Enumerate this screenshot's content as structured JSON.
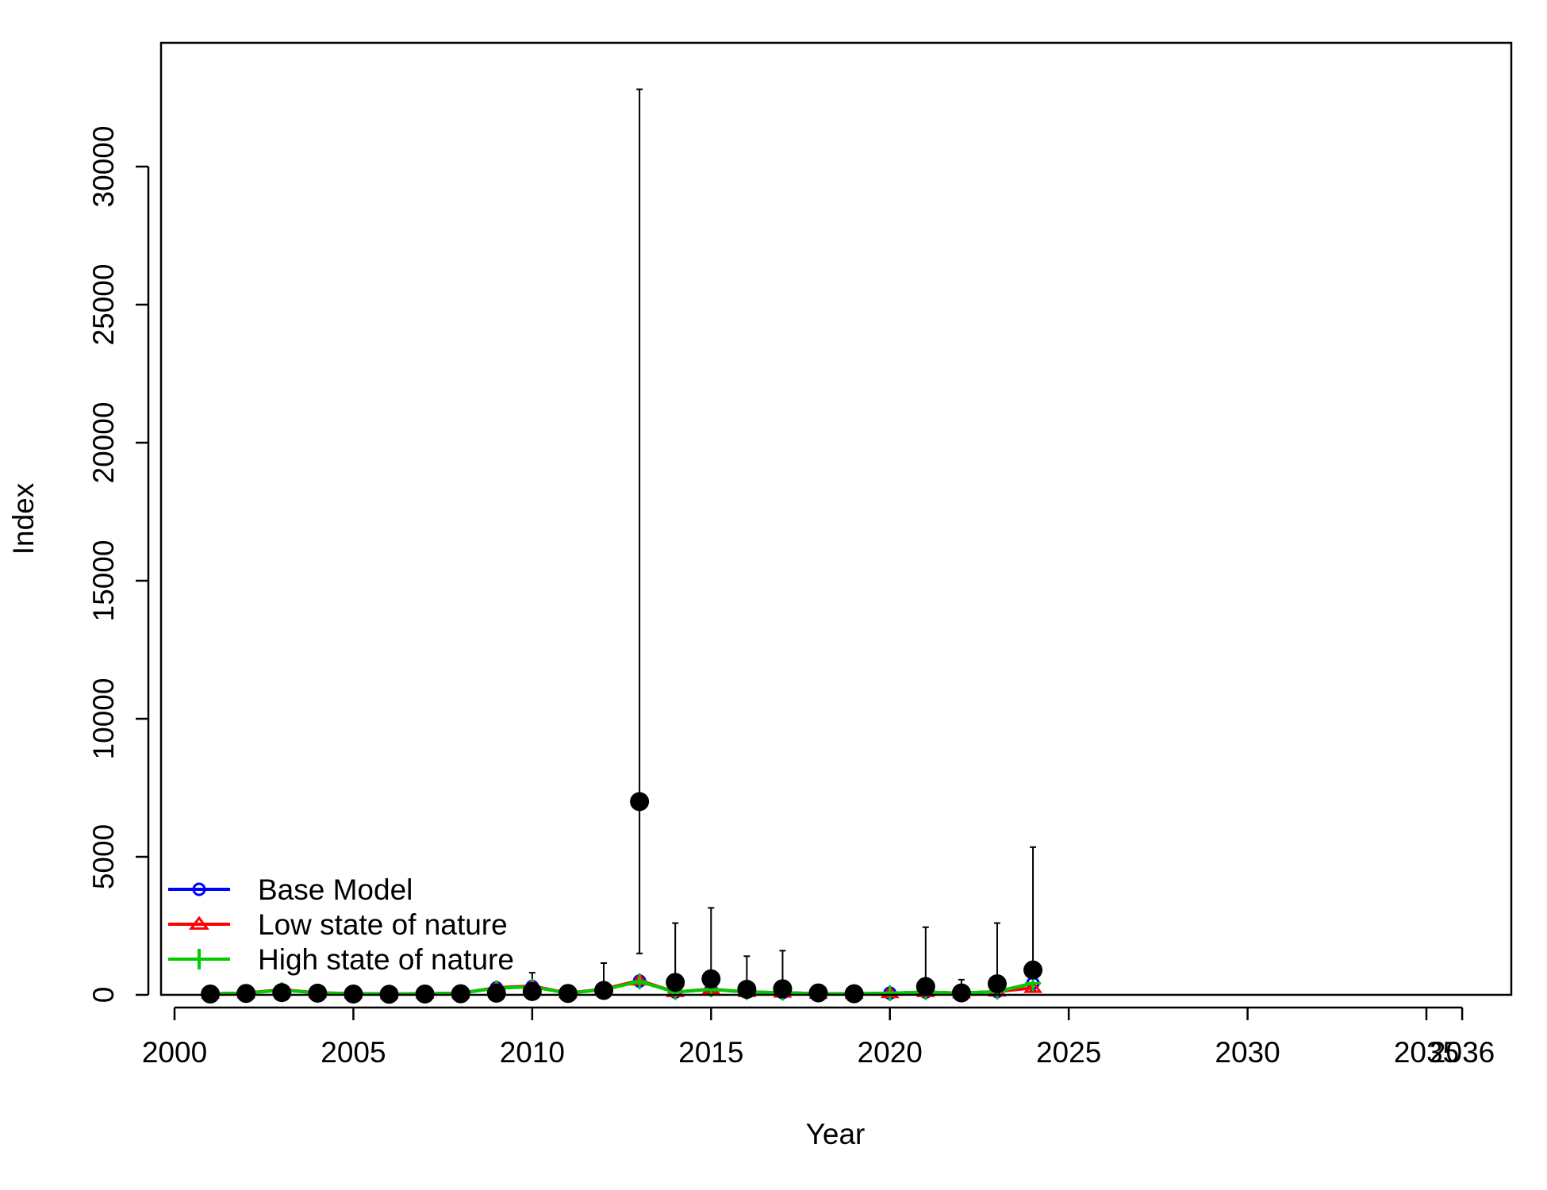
{
  "chart_data": {
    "type": "line",
    "title": "",
    "xlabel": "Year",
    "ylabel": "Index",
    "xlim": [
      2000,
      2036
    ],
    "ylim": [
      0,
      33000
    ],
    "xticks": [
      "2000",
      "2005",
      "2010",
      "2015",
      "2020",
      "2025",
      "2030",
      "2035",
      "2036"
    ],
    "yticks": [
      "0",
      "5000",
      "10000",
      "15000",
      "20000",
      "25000",
      "30000"
    ],
    "grid": false,
    "legend_position": "bottom-left",
    "series": [
      {
        "name": "Base Model",
        "color": "#0000ff",
        "marker": "circle",
        "x": [
          2001,
          2002,
          2003,
          2004,
          2005,
          2006,
          2007,
          2008,
          2009,
          2010,
          2011,
          2012,
          2013,
          2014,
          2015,
          2016,
          2017,
          2018,
          2019,
          2020,
          2021,
          2022,
          2023,
          2024
        ],
        "y": [
          40,
          60,
          180,
          70,
          50,
          30,
          40,
          60,
          250,
          300,
          60,
          200,
          500,
          100,
          200,
          100,
          80,
          40,
          40,
          60,
          100,
          60,
          120,
          420
        ]
      },
      {
        "name": "Low state of nature",
        "color": "#ff0000",
        "marker": "triangle",
        "x": [
          2001,
          2002,
          2003,
          2004,
          2005,
          2006,
          2007,
          2008,
          2009,
          2010,
          2011,
          2012,
          2013,
          2014,
          2015,
          2016,
          2017,
          2018,
          2019,
          2020,
          2021,
          2022,
          2023,
          2024
        ],
        "y": [
          40,
          60,
          190,
          70,
          50,
          30,
          40,
          60,
          260,
          320,
          60,
          210,
          520,
          100,
          210,
          100,
          80,
          40,
          40,
          60,
          100,
          60,
          120,
          250
        ]
      },
      {
        "name": "High state of nature",
        "color": "#00cc00",
        "marker": "plus",
        "x": [
          2001,
          2002,
          2003,
          2004,
          2005,
          2006,
          2007,
          2008,
          2009,
          2010,
          2011,
          2012,
          2013,
          2014,
          2015,
          2016,
          2017,
          2018,
          2019,
          2020,
          2021,
          2022,
          2023,
          2024
        ],
        "y": [
          40,
          60,
          170,
          70,
          50,
          30,
          40,
          60,
          240,
          290,
          60,
          190,
          480,
          100,
          200,
          100,
          80,
          40,
          40,
          60,
          100,
          60,
          120,
          420
        ]
      }
    ],
    "observed": {
      "color": "#000000",
      "x": [
        2001,
        2002,
        2003,
        2004,
        2005,
        2006,
        2007,
        2008,
        2009,
        2010,
        2011,
        2012,
        2013,
        2014,
        2015,
        2016,
        2017,
        2018,
        2019,
        2021,
        2022,
        2023,
        2024
      ],
      "y": [
        30,
        50,
        80,
        60,
        30,
        20,
        30,
        40,
        60,
        120,
        50,
        160,
        7000,
        450,
        580,
        200,
        220,
        70,
        40,
        300,
        70,
        400,
        900
      ],
      "upper": [
        150,
        300,
        250,
        150,
        100,
        80,
        100,
        150,
        250,
        800,
        200,
        1150,
        32800,
        2600,
        3150,
        1400,
        1600,
        200,
        150,
        2450,
        550,
        2600,
        5350
      ],
      "lower": [
        5,
        10,
        15,
        10,
        5,
        5,
        5,
        5,
        10,
        20,
        10,
        20,
        1500,
        80,
        100,
        30,
        30,
        10,
        5,
        40,
        10,
        60,
        150
      ]
    }
  }
}
